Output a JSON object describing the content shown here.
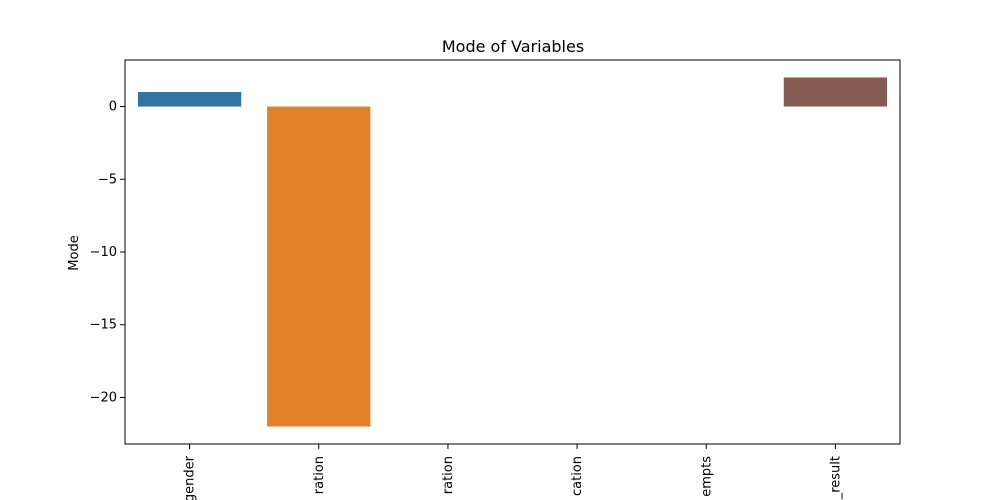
{
  "chart_data": {
    "type": "bar",
    "title": "Mode of Variables",
    "xlabel": "",
    "ylabel": "Mode",
    "categories": [
      "gender",
      "ration",
      "ration",
      "cation",
      "empts",
      "_result"
    ],
    "values": [
      1,
      -22,
      0,
      0,
      0,
      2
    ],
    "colors": [
      "#3274a1",
      "#e1812c",
      "#3a923a",
      "#c03d3e",
      "#9372b2",
      "#845b53"
    ],
    "ylim": [
      -23.2,
      3.2
    ],
    "yticks": [
      0,
      -5,
      -10,
      -15,
      -20
    ],
    "ytick_labels": [
      "0",
      "−5",
      "−10",
      "−15",
      "−20"
    ],
    "grid": false,
    "legend": "none"
  }
}
